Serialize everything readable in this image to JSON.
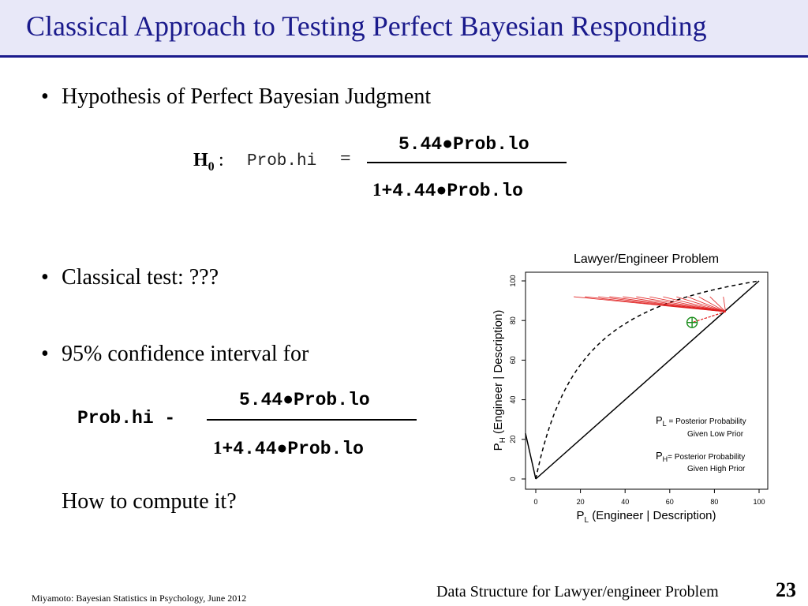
{
  "slide": {
    "title": "Classical Approach to Testing Perfect Bayesian Responding",
    "bullets": [
      "Hypothesis of Perfect Bayesian Judgment",
      "Classical test:  ???",
      "95% confidence interval for"
    ],
    "question": "How to compute it?",
    "footer_left": "Miyamoto: Bayesian Statistics in Psychology, June 2012",
    "footer_center": "Data Structure for Lawyer/engineer Problem",
    "page_number": "23"
  },
  "equation1": {
    "h": "H",
    "h_sub": "0",
    "colon": ":",
    "lhs": "Prob.hi",
    "equals": "=",
    "numerator": "5.44●Prob.lo",
    "denominator_one": "1",
    "denominator_rest": "+4.44●Prob.lo"
  },
  "equation2": {
    "lhs": "Prob.hi -",
    "numerator": "5.44●Prob.lo",
    "denominator_one": "1",
    "denominator_rest": "+4.44●Prob.lo"
  },
  "chart_data": {
    "type": "line",
    "title": "Lawyer/Engineer Problem",
    "xlabel_main": "P",
    "xlabel_sub": "L",
    "xlabel_rest": " (Engineer | Description)",
    "ylabel_main": "P",
    "ylabel_sub": "H",
    "ylabel_rest": " (Engineer | Description)",
    "xlim": [
      0,
      100
    ],
    "ylim": [
      0,
      100
    ],
    "xticks": [
      "0",
      "20",
      "40",
      "60",
      "80",
      "100"
    ],
    "yticks": [
      "0",
      "20",
      "40",
      "60",
      "80",
      "100"
    ],
    "series": [
      {
        "style": "solid",
        "description": "identity line",
        "x": [
          0,
          100
        ],
        "y": [
          0,
          100
        ]
      },
      {
        "style": "dashed",
        "description": "Bayesian curve y = 5.44x/(1+4.44x)"
      }
    ],
    "point": {
      "x": 70,
      "y": 79
    },
    "red_line_endpoints_x": [
      17,
      22,
      28,
      33,
      39,
      45,
      51,
      57,
      63,
      68,
      73,
      78,
      84
    ],
    "legend": [
      {
        "symbol": "P",
        "sub": "L",
        "sep": " = ",
        "text": "Posterior Probability",
        "text2": "Given Low Prior"
      },
      {
        "symbol": "P",
        "sub": "H",
        "sep": "= ",
        "text": "Posterior Probability",
        "text2": "Given High Prior"
      }
    ],
    "colors": {
      "axes": "#000000",
      "fan": "#e02020",
      "point": "#1a8c1a"
    }
  }
}
